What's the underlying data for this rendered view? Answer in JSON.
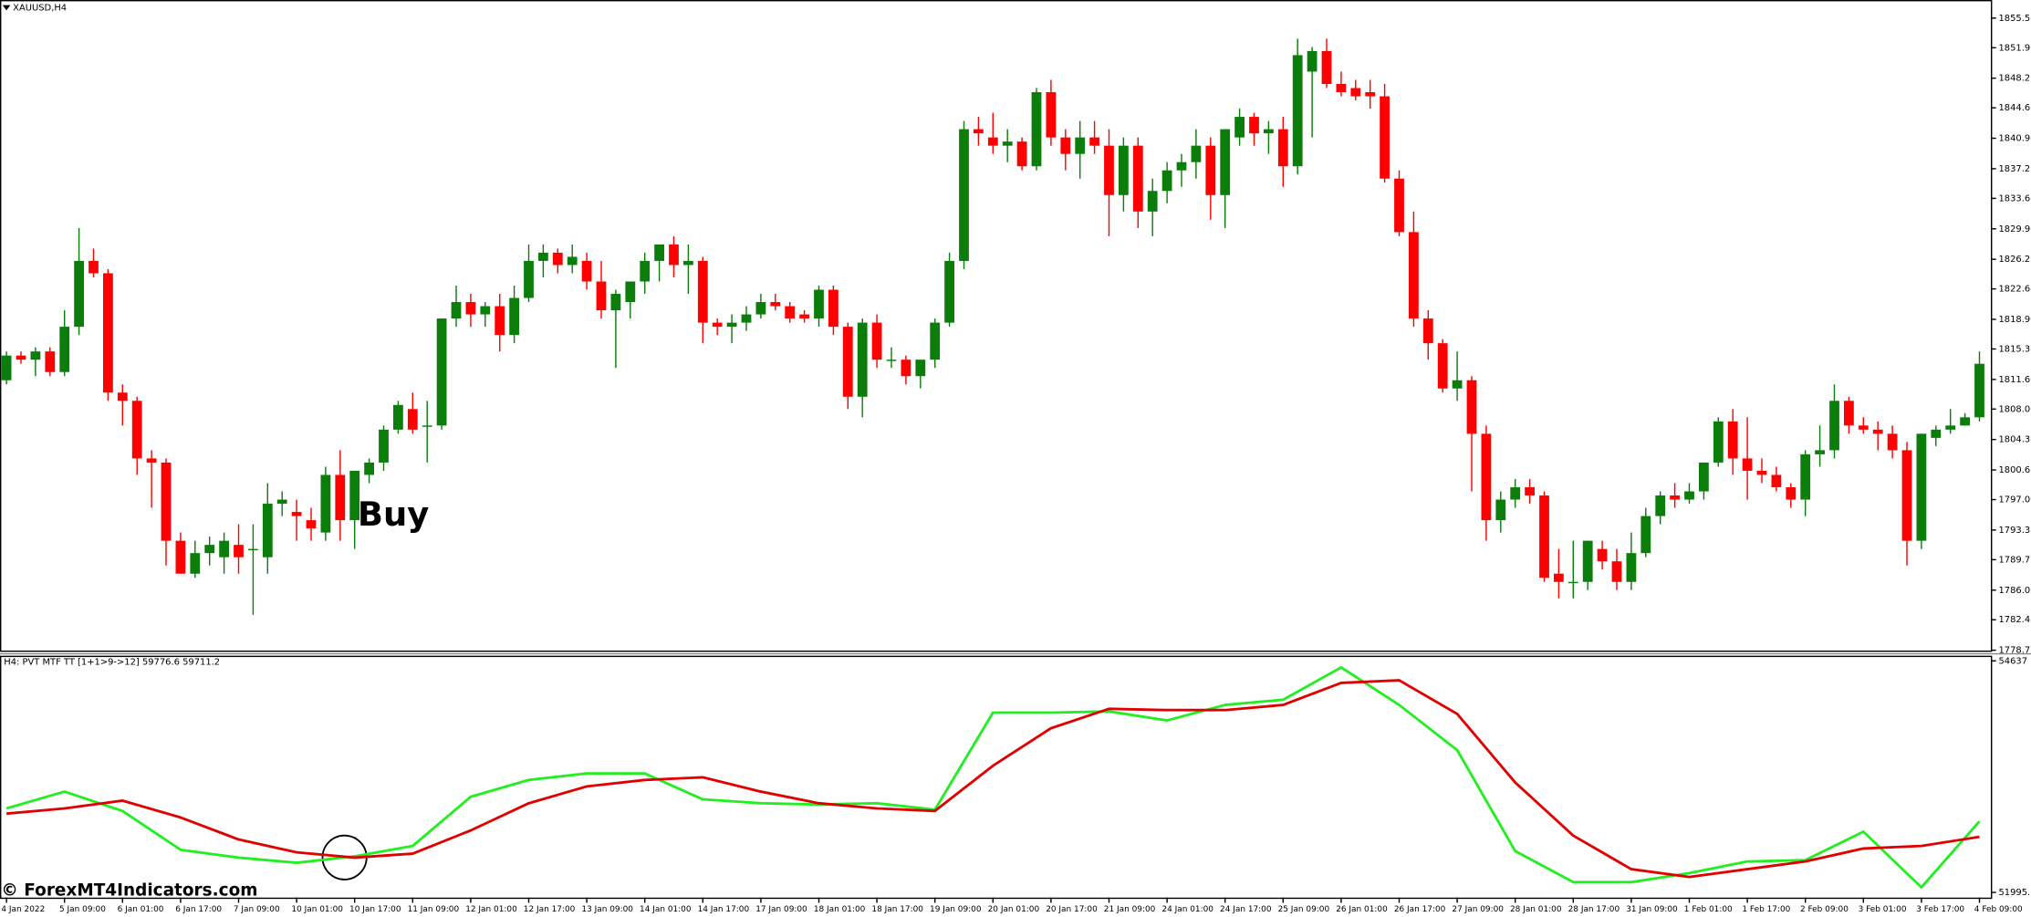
{
  "chart_data": [
    {
      "type": "candlestick",
      "title": "XAUUSD,H4",
      "annotation": "Buy",
      "up_color": "#0a7d0a",
      "down_color": "#ff0000",
      "open": [
        1811.5,
        1814.5,
        1814,
        1815,
        1812.5,
        1818,
        1826,
        1824.5,
        1810,
        1809,
        1802,
        1801.5,
        1792,
        1788,
        1790.5,
        1790,
        1791.5,
        1791,
        1790,
        1796.5,
        1795.5,
        1794.5,
        1793,
        1800,
        1794.5,
        1800,
        1801.5,
        1805.5,
        1808,
        1806,
        1806,
        1819,
        1821,
        1819.5,
        1820.5,
        1817,
        1821.5,
        1826,
        1827,
        1825.5,
        1826,
        1823.5,
        1820,
        1821,
        1823.5,
        1826,
        1828,
        1825.5,
        1826,
        1818.5,
        1818,
        1818.5,
        1819.5,
        1821,
        1820.5,
        1819.5,
        1819,
        1822.5,
        1818,
        1809.5,
        1818.5,
        1814,
        1814,
        1812,
        1814,
        1818.5,
        1826,
        1842,
        1841,
        1840,
        1840.5,
        1837.5,
        1846.5,
        1841,
        1839,
        1841,
        1840,
        1834,
        1840,
        1832,
        1834.5,
        1837,
        1838,
        1840,
        1834,
        1841,
        1843.5,
        1841.5,
        1842,
        1837.5,
        1849,
        1851.5,
        1847.5,
        1847,
        1846.5,
        1846,
        1836,
        1829.5,
        1819,
        1816,
        1810.5,
        1811.5,
        1805,
        1794.5,
        1797,
        1798.5,
        1797.5,
        1788,
        1787,
        1787,
        1791,
        1789.5,
        1787,
        1790.5,
        1795,
        1797.5,
        1797,
        1798,
        1801.5,
        1806.5,
        1802,
        1800.5,
        1800,
        1798.5,
        1797,
        1802.5,
        1803,
        1809,
        1806,
        1805.5,
        1805,
        1803,
        1792,
        1804.5,
        1805.5,
        1806,
        1807
      ],
      "high": [
        1815,
        1815,
        1815.5,
        1815.5,
        1820,
        1830,
        1827.5,
        1825,
        1811,
        1809.5,
        1803,
        1802,
        1793,
        1792,
        1792.5,
        1793,
        1794,
        1794,
        1799,
        1798,
        1797,
        1796,
        1801,
        1803,
        1800.5,
        1802,
        1806,
        1809,
        1810,
        1809,
        1819,
        1823,
        1822,
        1821,
        1822,
        1823,
        1828,
        1828,
        1827.5,
        1828,
        1827,
        1826,
        1822.5,
        1823,
        1827,
        1828,
        1829,
        1828,
        1826.5,
        1819,
        1819.5,
        1820.5,
        1822,
        1822,
        1821,
        1820,
        1823,
        1823,
        1818.5,
        1819,
        1819.5,
        1815.5,
        1814.5,
        1814,
        1819,
        1827,
        1843,
        1843.5,
        1844,
        1842,
        1841,
        1847,
        1848,
        1842,
        1843,
        1843,
        1842,
        1841,
        1841,
        1836,
        1838,
        1839,
        1842,
        1841,
        1842,
        1844.5,
        1844,
        1843,
        1843.5,
        1853,
        1852,
        1853,
        1849,
        1848,
        1848,
        1847.5,
        1837,
        1832,
        1820,
        1816.5,
        1815,
        1812,
        1806,
        1798,
        1799.5,
        1799.5,
        1798,
        1791,
        1792,
        1792,
        1792,
        1791,
        1793,
        1796,
        1798,
        1799,
        1799,
        1801,
        1807,
        1808,
        1807,
        1802,
        1801,
        1799,
        1803,
        1806,
        1811,
        1809.5,
        1807,
        1806.5,
        1806,
        1804,
        1805,
        1806,
        1808,
        1807.5,
        1815
      ],
      "low": [
        1811,
        1813.5,
        1812,
        1812,
        1812,
        1817,
        1824,
        1809,
        1806,
        1800,
        1796,
        1789,
        1788,
        1787.5,
        1789,
        1788,
        1788,
        1783,
        1788,
        1795,
        1792,
        1792,
        1792,
        1792,
        1791,
        1799,
        1800.5,
        1805,
        1805,
        1801.5,
        1805.5,
        1818,
        1818,
        1818,
        1815,
        1816,
        1821,
        1824,
        1824.5,
        1824.5,
        1822.5,
        1819,
        1813,
        1819,
        1822,
        1823.5,
        1824,
        1822,
        1816,
        1817,
        1816,
        1817.5,
        1819,
        1820,
        1818.5,
        1818.5,
        1818,
        1817,
        1808,
        1807,
        1813,
        1813,
        1811,
        1810.5,
        1813,
        1818,
        1825,
        1840,
        1839,
        1838,
        1837,
        1837,
        1840,
        1837,
        1836,
        1839,
        1829,
        1832,
        1830,
        1829,
        1833,
        1835,
        1836,
        1831,
        1830,
        1840,
        1840,
        1839,
        1835,
        1836.5,
        1841,
        1847,
        1846,
        1845.5,
        1844.5,
        1835.5,
        1829,
        1818,
        1814,
        1810,
        1809,
        1798,
        1792,
        1793,
        1796,
        1796.5,
        1787,
        1785,
        1785,
        1786,
        1788.5,
        1786,
        1786,
        1790,
        1794,
        1796,
        1796.5,
        1797,
        1801,
        1800,
        1797,
        1799,
        1798,
        1796,
        1795,
        1801,
        1802,
        1805,
        1805,
        1803,
        1802,
        1789,
        1791,
        1803.5,
        1805,
        1806,
        1806.5
      ],
      "close": [
        1814.5,
        1814,
        1815,
        1812.5,
        1818,
        1826,
        1824.5,
        1810,
        1809,
        1802,
        1801.5,
        1792,
        1788,
        1790.5,
        1791.5,
        1792,
        1790,
        1791,
        1796.5,
        1797,
        1795,
        1793.5,
        1800,
        1794.5,
        1800.5,
        1801.5,
        1805.5,
        1808.5,
        1805.5,
        1806,
        1819,
        1821,
        1819.5,
        1820.5,
        1817,
        1821.5,
        1826,
        1827,
        1825.5,
        1826.5,
        1823.5,
        1820,
        1822,
        1823.5,
        1826,
        1828,
        1825.5,
        1826,
        1818.5,
        1818,
        1818.5,
        1819.5,
        1821,
        1820.5,
        1819,
        1819,
        1822.5,
        1818,
        1809.5,
        1818.5,
        1814,
        1814,
        1812,
        1814,
        1818.5,
        1826,
        1842,
        1841.5,
        1840,
        1840.5,
        1837.5,
        1846.5,
        1841,
        1839,
        1841,
        1840,
        1834,
        1840,
        1832,
        1834.5,
        1837,
        1838,
        1840,
        1834,
        1842,
        1843.5,
        1841.5,
        1842,
        1837.5,
        1851,
        1851.5,
        1847.5,
        1846.5,
        1846,
        1846,
        1836,
        1829.5,
        1819,
        1816,
        1810.5,
        1811.5,
        1805,
        1794.5,
        1797,
        1798.5,
        1797.5,
        1787.5,
        1787,
        1787,
        1792,
        1789.5,
        1787,
        1790.5,
        1795,
        1797.5,
        1797,
        1798,
        1801.5,
        1806.5,
        1802,
        1800.5,
        1800,
        1798.5,
        1797,
        1802.5,
        1803,
        1809,
        1806,
        1805.5,
        1805,
        1803,
        1792,
        1805,
        1805.5,
        1806,
        1807,
        1813.5
      ],
      "ylim": [
        1778.5,
        1857.7
      ],
      "yticks": [
        {
          "value": 1855.5,
          "label": "1855.50"
        },
        {
          "value": 1851.9,
          "label": "1851.90"
        },
        {
          "value": 1848.2,
          "label": "1848.20"
        },
        {
          "value": 1844.6,
          "label": "1844.60"
        },
        {
          "value": 1840.9,
          "label": "1840.90"
        },
        {
          "value": 1837.2,
          "label": "1837.20"
        },
        {
          "value": 1833.6,
          "label": "1833.60"
        },
        {
          "value": 1829.9,
          "label": "1829.90"
        },
        {
          "value": 1826.2,
          "label": "1826.20"
        },
        {
          "value": 1822.6,
          "label": "1822.60"
        },
        {
          "value": 1818.9,
          "label": "1818.90"
        },
        {
          "value": 1815.3,
          "label": "1815.30"
        },
        {
          "value": 1811.6,
          "label": "1811.60"
        },
        {
          "value": 1808,
          "label": "1808.00"
        },
        {
          "value": 1804.3,
          "label": "1804.30"
        },
        {
          "value": 1800.6,
          "label": "1800.60"
        },
        {
          "value": 1797,
          "label": "1797.00"
        },
        {
          "value": 1793.3,
          "label": "1793.30"
        },
        {
          "value": 1789.7,
          "label": "1789.70"
        },
        {
          "value": 1786,
          "label": "1786.00"
        },
        {
          "value": 1782.4,
          "label": "1782.40"
        },
        {
          "value": 1778.7,
          "label": "1778.70"
        }
      ],
      "date_labels": [
        "4 Jan 2022",
        "5 Jan 09:00",
        "6 Jan 01:00",
        "6 Jan 17:00",
        "7 Jan 09:00",
        "10 Jan 01:00",
        "10 Jan 17:00",
        "11 Jan 09:00",
        "12 Jan 01:00",
        "12 Jan 17:00",
        "13 Jan 09:00",
        "14 Jan 01:00",
        "14 Jan 17:00",
        "17 Jan 09:00",
        "18 Jan 01:00",
        "18 Jan 17:00",
        "19 Jan 09:00",
        "20 Jan 01:00",
        "20 Jan 17:00",
        "21 Jan 09:00",
        "24 Jan 01:00",
        "24 Jan 17:00",
        "25 Jan 09:00",
        "26 Jan 01:00",
        "26 Jan 17:00",
        "27 Jan 09:00",
        "28 Jan 01:00",
        "28 Jan 17:00",
        "31 Jan 09:00",
        "1 Feb 01:00",
        "1 Feb 17:00",
        "2 Feb 09:00",
        "3 Feb 01:00",
        "3 Feb 17:00",
        "4 Feb 09:00"
      ]
    },
    {
      "type": "line",
      "title": "H4: PVT MTF TT [1+1>9->12] 59776.6 59711.2",
      "x": [
        0,
        4,
        8,
        12,
        16,
        20,
        24,
        28,
        32,
        36,
        40,
        44,
        48,
        52,
        56,
        60,
        64,
        68,
        72,
        76,
        80,
        84,
        88,
        92,
        96,
        100,
        104,
        108,
        112,
        116,
        120,
        124,
        128,
        132,
        136
      ],
      "series": [
        {
          "color": "#22ee22",
          "values": [
            52954,
            53146,
            52925,
            52482,
            52393,
            52334,
            52408,
            52526,
            53087,
            53279,
            53353,
            53353,
            53058,
            53013,
            52999,
            53013,
            52940,
            54047,
            54047,
            54061,
            53958,
            54135,
            54194,
            54563,
            54135,
            53619,
            52467,
            52113,
            52113,
            52216,
            52349,
            52364,
            52689,
            52054,
            52807
          ]
        },
        {
          "color": "#e00000",
          "values": [
            52895,
            52954,
            53043,
            52851,
            52600,
            52453,
            52393,
            52438,
            52703,
            53013,
            53205,
            53279,
            53309,
            53146,
            53013,
            52954,
            52925,
            53441,
            53869,
            54091,
            54076,
            54076,
            54135,
            54386,
            54416,
            54032,
            53250,
            52644,
            52261,
            52172,
            52261,
            52349,
            52497,
            52526,
            52630
          ]
        }
      ],
      "ylim": [
        51995.7,
        54637
      ],
      "yticks": [
        51995.7,
        54637
      ]
    }
  ],
  "watermark": "© ForexMT4Indicators.com"
}
